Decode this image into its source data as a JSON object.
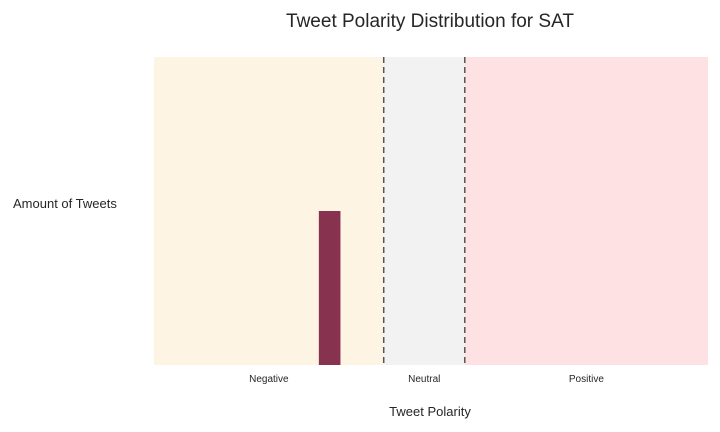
{
  "chart_data": {
    "type": "bar",
    "title": "Tweet Polarity Distribution for SAT",
    "xlabel": "Tweet Polarity",
    "ylabel": "Amount of Tweets",
    "regions": [
      {
        "label": "Negative",
        "from": -1.0,
        "to": -0.15,
        "color": "#fdf4e3"
      },
      {
        "label": "Neutral",
        "from": -0.15,
        "to": 0.15,
        "color": "#f2f2f2"
      },
      {
        "label": "Positive",
        "from": 0.15,
        "to": 1.05,
        "color": "#fee2e3"
      }
    ],
    "thresholds": [
      -0.15,
      0.15
    ],
    "xlim": [
      -1.0,
      1.05
    ],
    "ylim": [
      0,
      2
    ],
    "bars": [
      {
        "x0": -0.39,
        "x1": -0.31,
        "value": 1
      }
    ],
    "bar_color": "#87334f",
    "threshold_color": "#555555",
    "grid": false,
    "legend": "none"
  }
}
